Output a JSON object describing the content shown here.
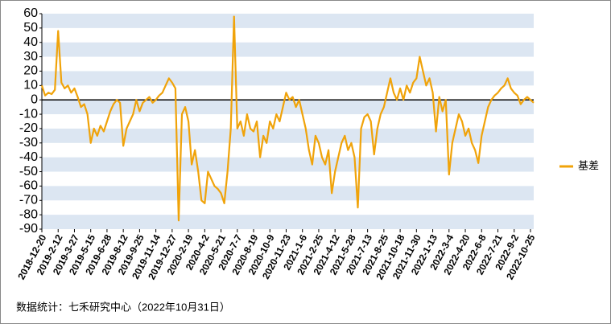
{
  "chart_data": {
    "type": "line",
    "categories": [
      "2018-12-20",
      null,
      null,
      null,
      null,
      "2019-2-12",
      null,
      null,
      null,
      null,
      "2019-3-27",
      null,
      null,
      null,
      null,
      "2019-5-15",
      null,
      null,
      null,
      null,
      "2019-6-28",
      null,
      null,
      null,
      null,
      "2019-8-12",
      null,
      null,
      null,
      null,
      "2019-9-25",
      null,
      null,
      null,
      null,
      "2019-11-14",
      null,
      null,
      null,
      null,
      "2019-12-27",
      null,
      null,
      null,
      null,
      "2020-2-19",
      null,
      null,
      null,
      null,
      "2020-4-2",
      null,
      null,
      null,
      null,
      "2020-5-21",
      null,
      null,
      null,
      null,
      "2020-7-7",
      null,
      null,
      null,
      null,
      "2020-8-19",
      null,
      null,
      null,
      null,
      "2020-10-9",
      null,
      null,
      null,
      null,
      "2020-11-23",
      null,
      null,
      null,
      null,
      "2021-1-6",
      null,
      null,
      null,
      null,
      "2021-2-25",
      null,
      null,
      null,
      null,
      "2021-4-12",
      null,
      null,
      null,
      null,
      "2021-5-28",
      null,
      null,
      null,
      null,
      "2021-7-13",
      null,
      null,
      null,
      null,
      "2021-8-25",
      null,
      null,
      null,
      null,
      "2021-10-18",
      null,
      null,
      null,
      null,
      "2021-11-30",
      null,
      null,
      null,
      null,
      "2022-1-13",
      null,
      null,
      null,
      null,
      "2022-3-4",
      null,
      null,
      null,
      null,
      "2022-4-20",
      null,
      null,
      null,
      null,
      "2022-6-8",
      null,
      null,
      null,
      null,
      "2022-7-21",
      null,
      null,
      null,
      null,
      "2022-9-2",
      null,
      null,
      null,
      null,
      "2022-10-25",
      null
    ],
    "series": [
      {
        "name": "基差",
        "color": "#f0a30a",
        "values": [
          10,
          3,
          5,
          4,
          7,
          48,
          12,
          8,
          10,
          5,
          8,
          2,
          -5,
          -3,
          -10,
          -30,
          -20,
          -25,
          -18,
          -22,
          -15,
          -8,
          -3,
          0,
          -2,
          -32,
          -20,
          -15,
          -10,
          0,
          -8,
          -2,
          0,
          2,
          -2,
          0,
          3,
          5,
          10,
          15,
          12,
          8,
          -84,
          -10,
          -5,
          -15,
          -45,
          -35,
          -50,
          -70,
          -72,
          -50,
          -55,
          -60,
          -62,
          -65,
          -72,
          -50,
          -20,
          58,
          -20,
          -15,
          -25,
          -10,
          -20,
          -22,
          -15,
          -40,
          -25,
          -30,
          -15,
          -20,
          -10,
          -15,
          -5,
          5,
          0,
          2,
          -5,
          0,
          -10,
          -20,
          -35,
          -45,
          -25,
          -30,
          -40,
          -45,
          -35,
          -65,
          -50,
          -40,
          -30,
          -25,
          -35,
          -30,
          -40,
          -75,
          -20,
          -12,
          -10,
          -15,
          -38,
          -20,
          -10,
          -5,
          5,
          15,
          5,
          0,
          8,
          0,
          10,
          5,
          12,
          15,
          30,
          20,
          10,
          15,
          5,
          -22,
          2,
          -8,
          0,
          -52,
          -30,
          -20,
          -10,
          -15,
          -25,
          -20,
          -30,
          -35,
          -44,
          -25,
          -15,
          -5,
          0,
          3,
          5,
          8,
          10,
          15,
          8,
          5,
          3,
          -3,
          0,
          2,
          0,
          -2
        ]
      }
    ],
    "ylim": [
      -90,
      60
    ],
    "yticks": [
      60,
      50,
      40,
      30,
      20,
      10,
      0,
      -10,
      -20,
      -30,
      -40,
      -50,
      -60,
      -70,
      -80,
      -90
    ],
    "grid": "bands",
    "band_color": "#dce6f2",
    "legend": "right",
    "source": "数据统计：七禾研究中心（2022年10月31日）"
  }
}
